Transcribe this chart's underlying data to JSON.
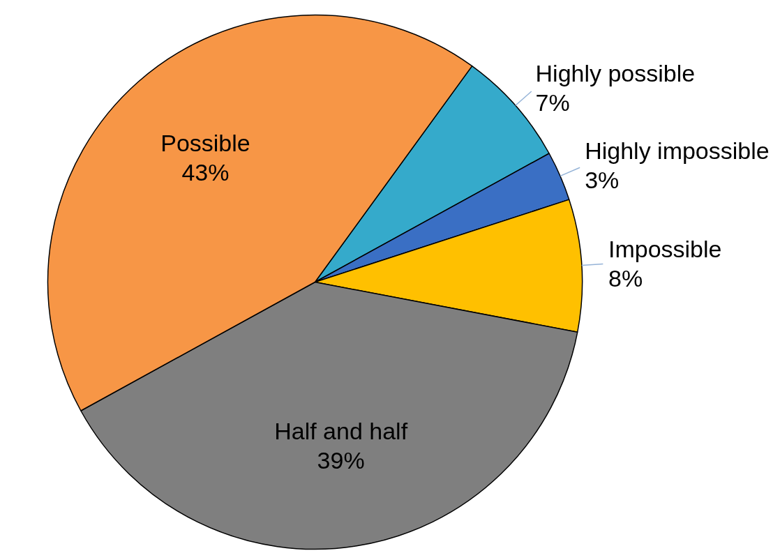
{
  "chart_data": {
    "type": "pie",
    "categories": [
      "Highly possible",
      "Highly impossible",
      "Impossible",
      "Half and half",
      "Possible"
    ],
    "values": [
      7,
      3,
      8,
      39,
      43
    ],
    "value_labels": [
      "7%",
      "3%",
      "8%",
      "39%",
      "43%"
    ],
    "colors": [
      "#35aacb",
      "#3a6fc4",
      "#ffc000",
      "#7f7f7f",
      "#f79646"
    ]
  }
}
